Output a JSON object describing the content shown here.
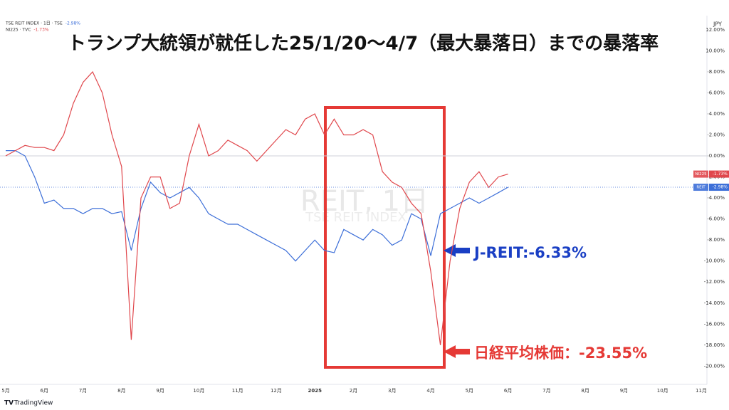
{
  "chart_data": {
    "type": "line",
    "title": "トランプ大統領が就任した25/1/20～4/7（最大暴落日）までの暴落率",
    "watermark": "REIT, 1日",
    "watermark_subtitle": "TSE REIT INDEX",
    "currency": "JPY",
    "brand": "TradingView",
    "categories": [
      "5月",
      null,
      null,
      null,
      "6月",
      null,
      null,
      null,
      "7月",
      null,
      null,
      null,
      "8月",
      null,
      null,
      null,
      "9月",
      null,
      null,
      null,
      "10月",
      null,
      null,
      null,
      "11月",
      null,
      null,
      null,
      "12月",
      null,
      null,
      null,
      "2025",
      null,
      null,
      null,
      "2月",
      null,
      null,
      null,
      "3月",
      null,
      null,
      null,
      "4月",
      null,
      null,
      null,
      "5月",
      null,
      null,
      null,
      "6月",
      null,
      null,
      null,
      "7月",
      null,
      null,
      null,
      "8月",
      null,
      null,
      null,
      "9月",
      null,
      null,
      null,
      "10月",
      null,
      null,
      null,
      "11月"
    ],
    "series": [
      {
        "name": "TSE REIT INDEX · 1日 · TSE",
        "tag": "REIT",
        "last_value_label": "-2.98%",
        "color": "#3d6fd8",
        "values": [
          0.5,
          0.5,
          0,
          -2,
          -4.5,
          -4.2,
          -5,
          -5,
          -5.5,
          -5,
          -5,
          -5.5,
          -5.3,
          -9,
          -5,
          -2.5,
          -3.5,
          -4,
          -3.5,
          -3,
          -4,
          -5.5,
          -6,
          -6.5,
          -6.5,
          -7,
          -7.5,
          -8,
          -8.5,
          -9,
          -10,
          -9,
          -8,
          -9,
          -9.2,
          -7,
          -7.5,
          -8,
          -7,
          -7.5,
          -8.5,
          -8,
          -5.5,
          -6,
          -9.5,
          -5.5,
          -5,
          -4.5,
          -4,
          -4.5,
          -4,
          -3.5,
          -2.98,
          null,
          null,
          null,
          null,
          null,
          null,
          null,
          null,
          null,
          null,
          null,
          null,
          null,
          null,
          null,
          null,
          null,
          null,
          null,
          null
        ]
      },
      {
        "name": "NI225 · TVC",
        "tag": "NI225",
        "last_value_label": "-1.73%",
        "color": "#e0474c",
        "values": [
          0,
          0.5,
          1.0,
          0.8,
          0.8,
          0.5,
          2.0,
          5.0,
          7.0,
          8.0,
          6,
          2,
          -1,
          -17.5,
          -4,
          -2,
          -2,
          -5,
          -4.5,
          0,
          3,
          0,
          0.5,
          1.5,
          1.0,
          0.5,
          -0.5,
          0.5,
          1.5,
          2.5,
          2.0,
          3.5,
          4.0,
          2.0,
          3.5,
          2.0,
          2.0,
          2.5,
          2.0,
          -1.5,
          -2.5,
          -3.0,
          -4.5,
          -5.5,
          -11,
          -18,
          -10,
          -5,
          -2.5,
          -1.5,
          -3,
          -2,
          -1.73,
          null,
          null,
          null,
          null,
          null,
          null,
          null,
          null,
          null,
          null,
          null,
          null,
          null,
          null,
          null,
          null,
          null,
          null,
          null,
          null
        ]
      }
    ],
    "ylim": [
      -21.6,
      12.8
    ],
    "yticks": [
      {
        "value": 12,
        "label": "12.00%"
      },
      {
        "value": 10,
        "label": "10.00%"
      },
      {
        "value": 8,
        "label": "8.00%"
      },
      {
        "value": 6,
        "label": "6.00%"
      },
      {
        "value": 4,
        "label": "4.00%"
      },
      {
        "value": 2,
        "label": "2.00%"
      },
      {
        "value": 0,
        "label": "0.00%"
      },
      {
        "value": -2,
        "label": "-2.00%"
      },
      {
        "value": -4,
        "label": "-4.00%"
      },
      {
        "value": -6,
        "label": "-6.00%"
      },
      {
        "value": -8,
        "label": "-8.00%"
      },
      {
        "value": -10,
        "label": "-10.00%"
      },
      {
        "value": -12,
        "label": "-12.00%"
      },
      {
        "value": -14,
        "label": "-14.00%"
      },
      {
        "value": -16,
        "label": "-16.00%"
      },
      {
        "value": -18,
        "label": "-18.00%"
      },
      {
        "value": -20,
        "label": "-20.00%"
      }
    ],
    "grid": false,
    "annotations": [
      {
        "text": "J-REIT:-6.33%",
        "color": "#1a3fc4"
      },
      {
        "text": "日経平均株価：-23.55%",
        "color": "#e53935"
      }
    ]
  }
}
